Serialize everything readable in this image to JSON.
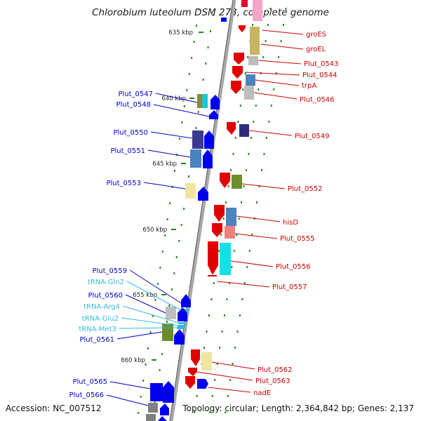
{
  "title": "Chlorobium luteolum DSM 273, complete genome",
  "accession": "Accession: NC_007512",
  "summary": "Topology: circular; Length: 2,364,842 bp; Genes: 2,137",
  "colors": {
    "forward_label": "#cc0000",
    "reverse_label": "#0000cc",
    "rna_label": "#33bbdd",
    "backbone": "#9a9a9a",
    "tick": "#1e8a1e"
  },
  "ticks": [
    "635 kbp",
    "640 kbp",
    "645 kbp",
    "650 kbp",
    "655 kbp",
    "660 kbp"
  ],
  "right_labels": [
    "groES",
    "groEL",
    "Plut_0543",
    "Plut_0544",
    "trpA",
    "Plut_0546",
    "Plut_0549",
    "Plut_0552",
    "hisD",
    "Plut_0555",
    "Plut_0556",
    "Plut_0557",
    "Plut_0562",
    "Plut_0563",
    "nadE"
  ],
  "left_labels": [
    {
      "text": "Plut_0547",
      "kind": "reverse"
    },
    {
      "text": "Plut_0548",
      "kind": "reverse"
    },
    {
      "text": "Plut_0550",
      "kind": "reverse"
    },
    {
      "text": "Plut_0551",
      "kind": "reverse"
    },
    {
      "text": "Plut_0553",
      "kind": "reverse"
    },
    {
      "text": "Plut_0559",
      "kind": "reverse"
    },
    {
      "text": "tRNA-Gln2",
      "kind": "rna"
    },
    {
      "text": "Plut_0560",
      "kind": "reverse"
    },
    {
      "text": "tRNA-Arg4",
      "kind": "rna"
    },
    {
      "text": "tRNA-Glu2",
      "kind": "rna"
    },
    {
      "text": "tRNA-Met3",
      "kind": "rna"
    },
    {
      "text": "Plut_0561",
      "kind": "reverse"
    },
    {
      "text": "Plut_0565",
      "kind": "reverse"
    },
    {
      "text": "Plut_0566",
      "kind": "reverse"
    }
  ]
}
